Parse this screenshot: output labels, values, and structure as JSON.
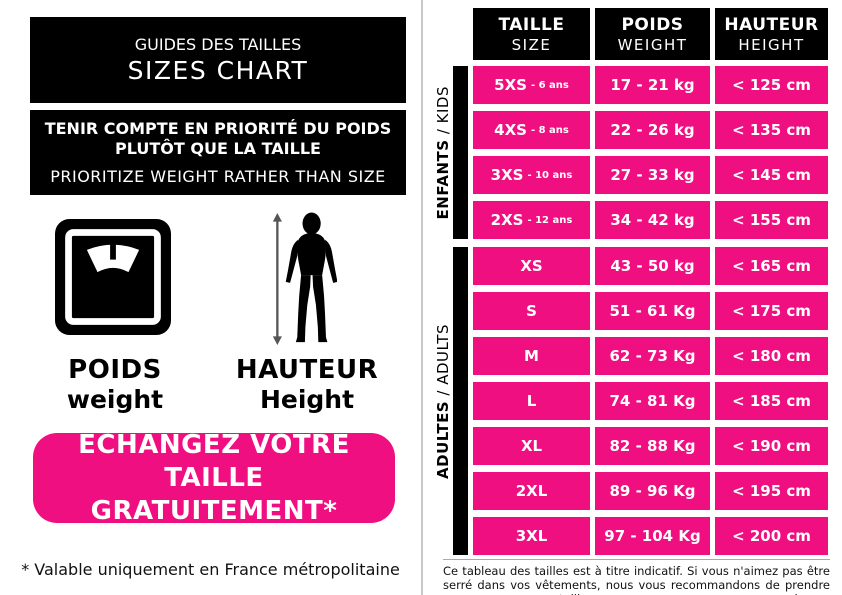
{
  "colors": {
    "pink": "#EF0F80",
    "black": "#000000",
    "white": "#ffffff",
    "divider": "#c8c8c8",
    "arrow": "#555555"
  },
  "left_panel": {
    "title_fr": "GUIDES DES TAILLES",
    "title_en": "SIZES CHART",
    "notice_fr_line1": "TENIR COMPTE EN PRIORITÉ DU POIDS",
    "notice_fr_line2": "PLUTÔT QUE LA TAILLE",
    "notice_en": "PRIORITIZE WEIGHT RATHER THAN SIZE",
    "weight_icon": "scale-icon",
    "height_icon": "person-height-icon",
    "weight_label_fr": "POIDS",
    "weight_label_en": "weight",
    "height_label_fr": "HAUTEUR",
    "height_label_en": "Height",
    "exchange_line1": "ECHANGEZ VOTRE TAILLE",
    "exchange_line2": "GRATUITEMENT*",
    "footnote": "* Valable uniquement en France métropolitaine"
  },
  "table": {
    "headers": [
      {
        "fr": "TAILLE",
        "en": "SIZE"
      },
      {
        "fr": "POIDS",
        "en": "WEIGHT"
      },
      {
        "fr": "HAUTEUR",
        "en": "HEIGHT"
      }
    ],
    "groups": [
      {
        "id": "kids",
        "label_fr": "ENFANTS",
        "label_sep": " / ",
        "label_en": "KIDS"
      },
      {
        "id": "adults",
        "label_fr": "ADULTES",
        "label_sep": " / ",
        "label_en": "ADULTS"
      }
    ],
    "rows": [
      {
        "group": "kids",
        "size": "5XS",
        "age": "- 6 ans",
        "weight": "17 - 21 kg",
        "height": "< 125 cm"
      },
      {
        "group": "kids",
        "size": "4XS",
        "age": "- 8 ans",
        "weight": "22 - 26 kg",
        "height": "< 135 cm"
      },
      {
        "group": "kids",
        "size": "3XS",
        "age": "- 10 ans",
        "weight": "27 - 33 kg",
        "height": "< 145 cm"
      },
      {
        "group": "kids",
        "size": "2XS",
        "age": "- 12 ans",
        "weight": "34 - 42 kg",
        "height": "< 155 cm"
      },
      {
        "group": "adults",
        "size": "XS",
        "age": "",
        "weight": "43 - 50 kg",
        "height": "< 165 cm"
      },
      {
        "group": "adults",
        "size": "S",
        "age": "",
        "weight": "51 - 61 Kg",
        "height": "< 175 cm"
      },
      {
        "group": "adults",
        "size": "M",
        "age": "",
        "weight": "62 - 73 Kg",
        "height": "< 180 cm"
      },
      {
        "group": "adults",
        "size": "L",
        "age": "",
        "weight": "74 - 81 Kg",
        "height": "< 185 cm"
      },
      {
        "group": "adults",
        "size": "XL",
        "age": "",
        "weight": "82 - 88 Kg",
        "height": "< 190 cm"
      },
      {
        "group": "adults",
        "size": "2XL",
        "age": "",
        "weight": "89 - 96 Kg",
        "height": "< 195 cm"
      },
      {
        "group": "adults",
        "size": "3XL",
        "age": "",
        "weight": "97 - 104 Kg",
        "height": "< 200 cm"
      }
    ]
  },
  "caption": "Ce tableau des tailles est à titre indicatif. Si vous n'aimez pas être serré dans vos vêtements, nous vous recommandons de prendre une taille au dessus",
  "chart_data": {
    "type": "table",
    "title": "GUIDES DES TAILLES / SIZES CHART",
    "columns": [
      "TAILLE / SIZE",
      "POIDS / WEIGHT",
      "HAUTEUR / HEIGHT"
    ],
    "row_groups": {
      "ENFANTS / KIDS": [
        0,
        3
      ],
      "ADULTES / ADULTS": [
        4,
        10
      ]
    },
    "rows": [
      [
        "5XS - 6 ans",
        "17 - 21 kg",
        "< 125 cm"
      ],
      [
        "4XS - 8 ans",
        "22 - 26 kg",
        "< 135 cm"
      ],
      [
        "3XS - 10 ans",
        "27 - 33 kg",
        "< 145 cm"
      ],
      [
        "2XS - 12 ans",
        "34 - 42 kg",
        "< 155 cm"
      ],
      [
        "XS",
        "43 - 50 kg",
        "< 165 cm"
      ],
      [
        "S",
        "51 - 61 Kg",
        "< 175 cm"
      ],
      [
        "M",
        "62 - 73 Kg",
        "< 180 cm"
      ],
      [
        "L",
        "74 - 81 Kg",
        "< 185 cm"
      ],
      [
        "XL",
        "82 - 88 Kg",
        "< 190 cm"
      ],
      [
        "2XL",
        "89 - 96 Kg",
        "< 195 cm"
      ],
      [
        "3XL",
        "97 - 104 Kg",
        "< 200 cm"
      ]
    ]
  }
}
